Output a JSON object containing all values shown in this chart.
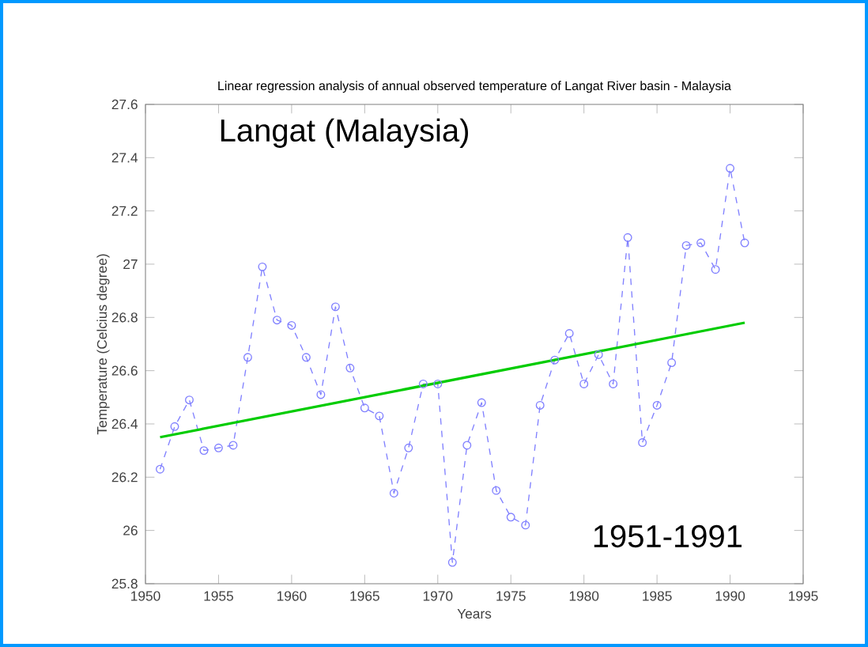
{
  "chart_data": {
    "type": "line",
    "title": "Linear regression analysis of annual observed temperature of Langat River basin - Malaysia",
    "xlabel": "Years",
    "ylabel": "Temperature (Celcius degree)",
    "annotations": [
      "Langat (Malaysia)",
      "1951-1991"
    ],
    "series": [
      {
        "color": "#8080ff",
        "marker": "circle",
        "line_style": "dashed",
        "x": [
          1951,
          1952,
          1953,
          1954,
          1955,
          1956,
          1957,
          1958,
          1959,
          1960,
          1961,
          1962,
          1963,
          1964,
          1965,
          1966,
          1967,
          1968,
          1969,
          1970,
          1971,
          1972,
          1973,
          1974,
          1975,
          1976,
          1977,
          1978,
          1979,
          1980,
          1981,
          1982,
          1983,
          1984,
          1985,
          1986,
          1987,
          1988,
          1989,
          1990,
          1991
        ],
        "values": [
          26.23,
          26.39,
          26.49,
          26.3,
          26.31,
          26.32,
          26.65,
          26.99,
          26.79,
          26.77,
          26.65,
          26.51,
          26.84,
          26.61,
          26.46,
          26.43,
          26.14,
          26.31,
          26.55,
          26.55,
          25.88,
          26.32,
          26.48,
          26.15,
          26.05,
          26.02,
          26.47,
          26.64,
          26.74,
          26.55,
          26.66,
          26.55,
          27.1,
          26.33,
          26.47,
          26.63,
          27.07,
          27.08,
          26.98,
          27.36,
          27.08
        ]
      },
      {
        "color": "#00cc00",
        "marker": "none",
        "line_style": "solid",
        "x": [
          1951,
          1991
        ],
        "values": [
          26.35,
          26.78
        ]
      }
    ],
    "xlim": [
      1950,
      1995
    ],
    "ylim": [
      25.8,
      27.6
    ],
    "xticks": [
      1950,
      1955,
      1960,
      1965,
      1970,
      1975,
      1980,
      1985,
      1990,
      1995
    ],
    "yticks": [
      25.8,
      26,
      26.2,
      26.4,
      26.6,
      26.8,
      27,
      27.2,
      27.4,
      27.6
    ]
  }
}
